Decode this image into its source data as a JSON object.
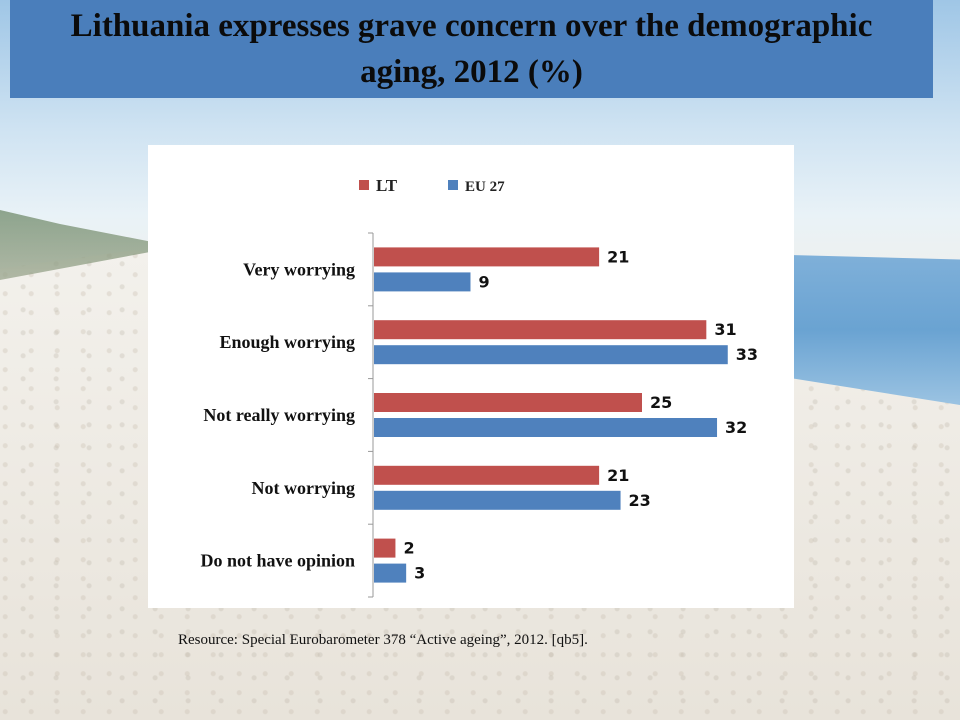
{
  "title": "Lithuania expresses grave concern over the demographic aging, 2012 (%)",
  "source": "Resource: Special Eurobarometer 378 “Active ageing”, 2012. [qb5].",
  "colors": {
    "LT": "#c0504d",
    "EU 27": "#4f81bd",
    "title_bar": "#4a7ebb"
  },
  "chart_data": {
    "type": "bar",
    "orientation": "horizontal",
    "categories": [
      "Very worrying",
      "Enough worrying",
      "Not really worrying",
      "Not worrying",
      "Do not have opinion"
    ],
    "series": [
      {
        "name": "LT",
        "color": "#c0504d",
        "values": [
          21,
          31,
          25,
          21,
          2
        ]
      },
      {
        "name": "EU 27",
        "color": "#4f81bd",
        "values": [
          9,
          33,
          32,
          23,
          3
        ]
      }
    ],
    "xlim": [
      0,
      35
    ],
    "legend_position": "top",
    "grid": false,
    "data_labels": true
  }
}
